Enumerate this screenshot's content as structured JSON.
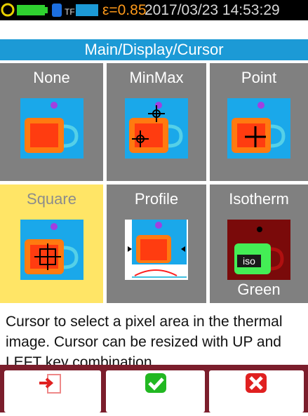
{
  "status": {
    "emissivity": "ε=0.85",
    "datetime": "2017/03/23 14:53:29"
  },
  "header": {
    "title": "Main/Display/Cursor"
  },
  "tiles": [
    {
      "label": "None"
    },
    {
      "label": "MinMax"
    },
    {
      "label": "Point"
    },
    {
      "label": "Square"
    },
    {
      "label": "Profile"
    },
    {
      "label": "Isotherm",
      "image_text": "iso",
      "sublabel": "Green"
    }
  ],
  "description": "Cursor to select a pixel area in the thermal image. Cursor can be resized with UP and LEFT key combination,"
}
